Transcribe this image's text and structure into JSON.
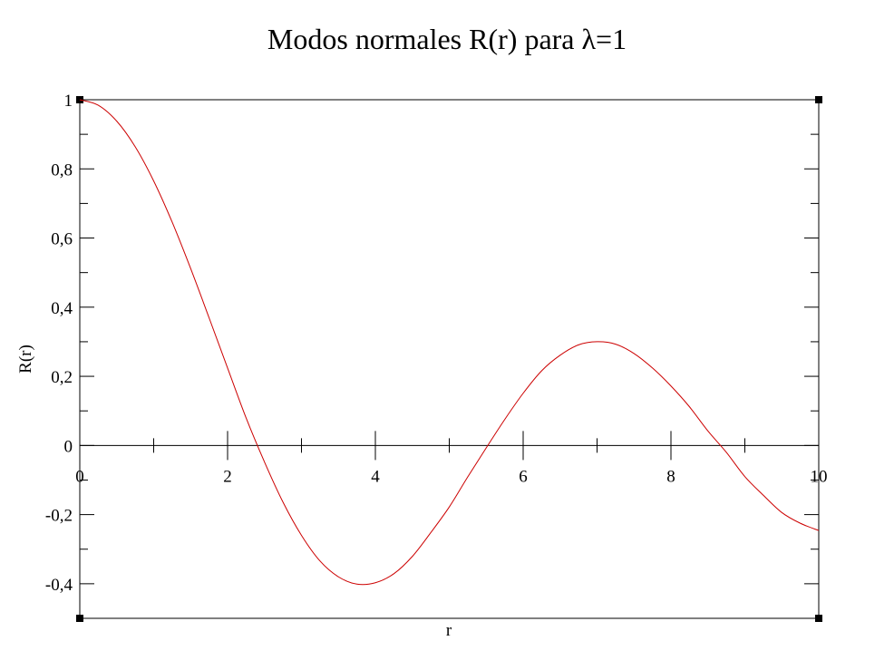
{
  "chart_data": {
    "type": "line",
    "title": "Modos normales R(r) para λ=1",
    "xlabel": "r",
    "ylabel": "R(r)",
    "xlim": [
      0,
      10
    ],
    "ylim": [
      -0.5,
      1
    ],
    "grid": false,
    "x_ticks": [
      0,
      2,
      4,
      6,
      8,
      10
    ],
    "x_tick_labels": [
      "0",
      "2",
      "4",
      "6",
      "8",
      "10"
    ],
    "x_minor_ticks": [
      1,
      3,
      5,
      7,
      9
    ],
    "y_ticks": [
      -0.4,
      -0.2,
      0,
      0.2,
      0.4,
      0.6,
      0.8,
      1
    ],
    "y_tick_labels": [
      "-0,4",
      "-0,2",
      "0",
      "0,2",
      "0,4",
      "0,6",
      "0,8",
      "1"
    ],
    "y_minor_ticks": [
      -0.3,
      -0.1,
      0.1,
      0.3,
      0.5,
      0.7,
      0.9
    ],
    "series": [
      {
        "color": "#cc0000",
        "x": [
          0,
          0.25,
          0.5,
          0.75,
          1,
          1.25,
          1.5,
          1.75,
          2,
          2.25,
          2.5,
          2.75,
          3,
          3.25,
          3.5,
          3.75,
          4,
          4.25,
          4.5,
          4.75,
          5,
          5.25,
          5.5,
          5.75,
          6,
          6.25,
          6.5,
          6.75,
          7,
          7.25,
          7.5,
          7.75,
          8,
          8.25,
          8.5,
          8.75,
          9,
          9.25,
          9.5,
          9.75,
          10
        ],
        "y": [
          1,
          0.984,
          0.938,
          0.864,
          0.765,
          0.646,
          0.512,
          0.369,
          0.224,
          0.08,
          -0.048,
          -0.164,
          -0.26,
          -0.334,
          -0.38,
          -0.401,
          -0.397,
          -0.371,
          -0.321,
          -0.252,
          -0.178,
          -0.091,
          -0.007,
          0.075,
          0.151,
          0.216,
          0.261,
          0.291,
          0.3,
          0.293,
          0.266,
          0.224,
          0.172,
          0.112,
          0.042,
          -0.02,
          -0.09,
          -0.144,
          -0.194,
          -0.225,
          -0.246
        ]
      }
    ]
  }
}
